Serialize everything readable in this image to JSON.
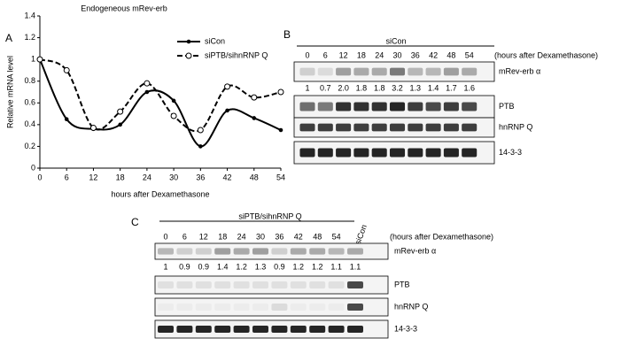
{
  "panels": {
    "a": "A",
    "b": "B",
    "c": "C"
  },
  "chart_data": {
    "type": "line",
    "title": "Endogeneous mRev-erb",
    "x_label": "hours after Dexamethasone",
    "y_label": "Relative mRNA level",
    "x": [
      0,
      6,
      12,
      18,
      24,
      30,
      36,
      42,
      48,
      54
    ],
    "xlim": [
      0,
      54
    ],
    "xticks": [
      0,
      6,
      12,
      18,
      24,
      30,
      36,
      42,
      48,
      54
    ],
    "ylim": [
      0,
      1.4
    ],
    "yticks": [
      0,
      0.2,
      0.4,
      0.6,
      0.8,
      1,
      1.2,
      1.4
    ],
    "series": [
      {
        "name": "siCon",
        "color": "#000000",
        "line_style": "solid",
        "marker": "dot",
        "values": [
          1,
          0.45,
          0.36,
          0.4,
          0.7,
          0.62,
          0.2,
          0.53,
          0.46,
          0.35
        ]
      },
      {
        "name": "siPTB/sihnRNP Q",
        "color": "#000000",
        "line_style": "dashed",
        "marker": "open-circle",
        "values": [
          1,
          0.9,
          0.37,
          0.52,
          0.78,
          0.48,
          0.35,
          0.75,
          0.65,
          0.7
        ]
      }
    ]
  },
  "blot_b": {
    "title": "siCon",
    "lanes": [
      "0",
      "6",
      "12",
      "18",
      "24",
      "30",
      "36",
      "42",
      "48",
      "54"
    ],
    "lane_note": "(hours after Dexamethasone)",
    "rows": [
      "mRev-erb α",
      "PTB",
      "hnRNP Q",
      "14-3-3"
    ],
    "quant": [
      "1",
      "0.7",
      "2.0",
      "1.8",
      "1.8",
      "3.2",
      "1.3",
      "1.4",
      "1.7",
      "1.6"
    ]
  },
  "blot_c": {
    "title": "siPTB/sihnRNP Q",
    "lanes": [
      "0",
      "6",
      "12",
      "18",
      "24",
      "30",
      "36",
      "42",
      "48",
      "54"
    ],
    "control_lane": "siCon",
    "lane_note": "(hours after Dexamethasone)",
    "rows": [
      "mRev-erb α",
      "PTB",
      "hnRNP Q",
      "14-3-3"
    ],
    "quant": [
      "1",
      "0.9",
      "0.9",
      "1.4",
      "1.2",
      "1.3",
      "0.9",
      "1.2",
      "1.2",
      "1.1",
      "1.1"
    ]
  }
}
